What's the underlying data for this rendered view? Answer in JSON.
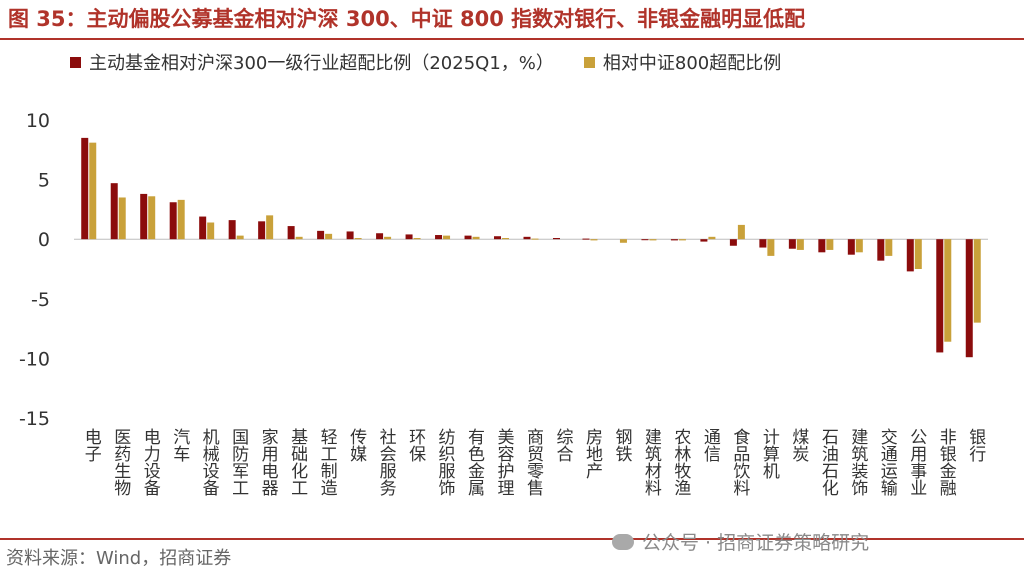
{
  "figure_title": "图 35：主动偏股公募基金相对沪深 300、中证 800 指数对银行、非银金融明显低配",
  "source_note": "资料来源：Wind，招商证券",
  "watermark": "公众号 · 招商证券策略研究",
  "colors": {
    "series1": "#8b0c0c",
    "series2": "#c9a13a",
    "accent": "#b0332a"
  },
  "chart_data": {
    "type": "bar",
    "categories": [
      "电子",
      "医药生物",
      "电力设备",
      "汽车",
      "机械设备",
      "国防军工",
      "家用电器",
      "基础化工",
      "轻工制造",
      "传媒",
      "社会服务",
      "环保",
      "纺织服饰",
      "有色金属",
      "美容护理",
      "商贸零售",
      "综合",
      "房地产",
      "钢铁",
      "建筑材料",
      "农林牧渔",
      "通信",
      "食品饮料",
      "计算机",
      "煤炭",
      "石油石化",
      "建筑装饰",
      "交通运输",
      "公用事业",
      "非银金融",
      "银行"
    ],
    "series": [
      {
        "name": "主动基金相对沪深300一级行业超配比例（2025Q1，%）",
        "values": [
          8.5,
          4.7,
          3.8,
          3.1,
          1.9,
          1.6,
          1.5,
          1.1,
          0.7,
          0.65,
          0.5,
          0.4,
          0.35,
          0.3,
          0.25,
          0.2,
          0.1,
          0.05,
          0.0,
          -0.05,
          -0.1,
          -0.2,
          -0.55,
          -0.7,
          -0.8,
          -1.1,
          -1.3,
          -1.8,
          -2.7,
          -9.5,
          -9.9
        ]
      },
      {
        "name": "相对中证800超配比例",
        "values": [
          8.1,
          3.5,
          3.6,
          3.3,
          1.4,
          0.3,
          2.0,
          0.2,
          0.45,
          0.1,
          0.2,
          0.1,
          0.3,
          0.2,
          0.1,
          0.05,
          0.0,
          -0.1,
          -0.3,
          -0.1,
          -0.1,
          0.2,
          1.2,
          -1.4,
          -0.9,
          -0.9,
          -1.1,
          -1.4,
          -2.5,
          -8.6,
          -7.0
        ]
      }
    ],
    "ylim": [
      -15,
      10
    ],
    "yticks": [
      10,
      5,
      0,
      -5,
      -10,
      -15
    ],
    "ytick_labels": [
      "10",
      "5",
      "0",
      "-5",
      "-10",
      "-15"
    ]
  }
}
